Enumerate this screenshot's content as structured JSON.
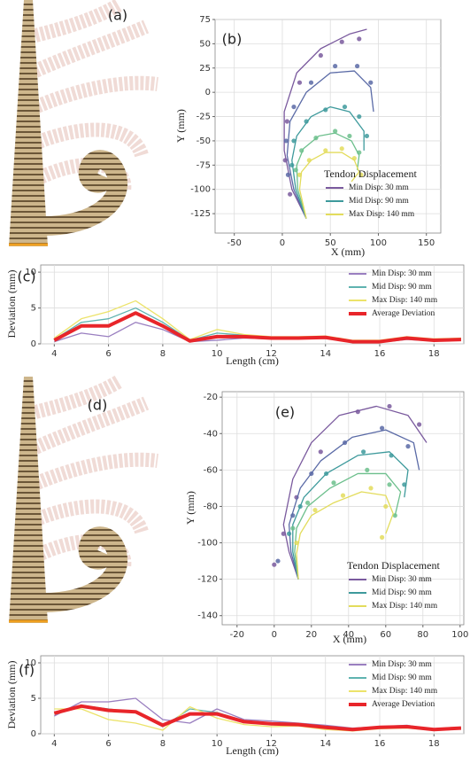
{
  "figures": [
    {
      "label": "(a)"
    },
    {
      "label": "(d)"
    }
  ],
  "chart_data": [
    {
      "type": "line",
      "panel_label": "(b)",
      "xlabel": "X (mm)",
      "ylabel": "Y (mm)",
      "xlim": [
        -70,
        165
      ],
      "ylim": [
        -145,
        75
      ],
      "xticks": [
        -50,
        0,
        50,
        100,
        150
      ],
      "yticks": [
        -125,
        -100,
        -75,
        -50,
        -25,
        0,
        25,
        50,
        75
      ],
      "grid": true,
      "legend": "lower right",
      "legend_title": "Tendon Displacement",
      "series": [
        {
          "name": "Min Disp: 30 mm",
          "color": "#7a5a9e",
          "x": [
            25,
            10,
            2,
            2,
            15,
            40,
            70,
            88
          ],
          "y": [
            -130,
            -100,
            -60,
            -20,
            20,
            45,
            60,
            65
          ],
          "points_x": [
            8,
            3,
            5,
            18,
            40,
            62,
            80
          ],
          "points_y": [
            -105,
            -70,
            -30,
            10,
            38,
            52,
            55
          ]
        },
        {
          "color": "#5a6aa6",
          "x": [
            25,
            12,
            5,
            8,
            25,
            50,
            75,
            92,
            95
          ],
          "y": [
            -130,
            -100,
            -65,
            -30,
            0,
            20,
            22,
            5,
            -20
          ],
          "points_x": [
            6,
            4,
            12,
            30,
            55,
            78,
            92
          ],
          "points_y": [
            -85,
            -50,
            -15,
            10,
            27,
            27,
            10
          ]
        },
        {
          "name": "Mid Disp: 90 mm",
          "color": "#3e9a9c",
          "x": [
            25,
            14,
            10,
            15,
            30,
            50,
            70,
            85,
            85
          ],
          "y": [
            -130,
            -100,
            -70,
            -45,
            -25,
            -15,
            -20,
            -40,
            -60
          ],
          "points_x": [
            10,
            12,
            25,
            45,
            65,
            80,
            88
          ],
          "points_y": [
            -75,
            -50,
            -30,
            -18,
            -15,
            -25,
            -45
          ]
        },
        {
          "color": "#6cbf8c",
          "x": [
            25,
            16,
            15,
            22,
            38,
            55,
            72,
            80,
            78
          ],
          "y": [
            -130,
            -100,
            -75,
            -58,
            -45,
            -42,
            -50,
            -65,
            -80
          ],
          "points_x": [
            14,
            20,
            35,
            55,
            70,
            80
          ],
          "points_y": [
            -80,
            -60,
            -47,
            -40,
            -45,
            -62
          ]
        },
        {
          "name": "Max Disp: 140 mm",
          "color": "#e3dc5c",
          "x": [
            25,
            18,
            20,
            30,
            45,
            62,
            75,
            80,
            72
          ],
          "y": [
            -130,
            -100,
            -82,
            -70,
            -62,
            -62,
            -70,
            -82,
            -92
          ],
          "points_x": [
            18,
            28,
            45,
            62,
            75,
            82
          ],
          "points_y": [
            -85,
            -70,
            -60,
            -58,
            -68,
            -85
          ]
        }
      ]
    },
    {
      "type": "line",
      "panel_label": "(c)",
      "xlabel": "Length (cm)",
      "ylabel": "Deviation (mm)",
      "xlim": [
        3.5,
        19.1
      ],
      "ylim": [
        0,
        11
      ],
      "xticks": [
        4,
        6,
        8,
        10,
        12,
        14,
        16,
        18
      ],
      "yticks": [
        0,
        5,
        10
      ],
      "grid": true,
      "legend": "upper right",
      "x": [
        4,
        5,
        6,
        7,
        8,
        9,
        10,
        11,
        12,
        13,
        14,
        15,
        16,
        17,
        18,
        19
      ],
      "series": [
        {
          "name": "Min Disp: 30 mm",
          "color": "#9a7fc0",
          "values": [
            0.3,
            1.5,
            1.0,
            3.0,
            2.0,
            0.3,
            0.5,
            0.8,
            0.7,
            0.7,
            0.8,
            0.2,
            0.2,
            0.6,
            0.4,
            0.5
          ]
        },
        {
          "name": "Mid Disp: 90 mm",
          "color": "#5fb3b0",
          "values": [
            0.6,
            3.0,
            3.5,
            5.0,
            3.0,
            0.5,
            1.5,
            1.2,
            0.9,
            0.9,
            1.0,
            0.4,
            0.4,
            0.9,
            0.6,
            0.7
          ]
        },
        {
          "name": "Max Disp: 140 mm",
          "color": "#ece36a",
          "values": [
            0.8,
            3.5,
            4.5,
            6.0,
            3.5,
            0.6,
            2.0,
            1.3,
            1.0,
            1.0,
            1.1,
            0.5,
            0.5,
            1.0,
            0.7,
            0.8
          ]
        },
        {
          "name": "Average Deviation",
          "color": "#e8252a",
          "linewidth": 4,
          "values": [
            0.5,
            2.5,
            2.5,
            4.3,
            2.5,
            0.4,
            1.0,
            1.0,
            0.8,
            0.8,
            0.9,
            0.3,
            0.3,
            0.8,
            0.5,
            0.6
          ]
        }
      ]
    },
    {
      "type": "line",
      "panel_label": "(e)",
      "xlabel": "X (mm)",
      "ylabel": "Y (mm)",
      "xlim": [
        -28,
        102
      ],
      "ylim": [
        -145,
        -17
      ],
      "xticks": [
        -20,
        0,
        20,
        40,
        60,
        80,
        100
      ],
      "yticks": [
        -140,
        -120,
        -100,
        -80,
        -60,
        -40,
        -20
      ],
      "grid": true,
      "legend": "lower right",
      "legend_title": "Tendon Displacement",
      "series": [
        {
          "name": "Min Disp: 30 mm",
          "color": "#7a5a9e",
          "x": [
            13,
            8,
            5,
            10,
            20,
            35,
            55,
            72,
            82
          ],
          "y": [
            -120,
            -105,
            -90,
            -65,
            -45,
            -30,
            -25,
            -30,
            -45
          ],
          "points_x": [
            0,
            5,
            12,
            25,
            45,
            62,
            78
          ],
          "points_y": [
            -112,
            -95,
            -75,
            -50,
            -28,
            -25,
            -35
          ]
        },
        {
          "color": "#5a6aa6",
          "x": [
            13,
            9,
            8,
            14,
            25,
            42,
            60,
            75,
            78
          ],
          "y": [
            -120,
            -105,
            -90,
            -70,
            -55,
            -42,
            -38,
            -45,
            -60
          ],
          "points_x": [
            2,
            10,
            20,
            38,
            58,
            72
          ],
          "points_y": [
            -110,
            -85,
            -62,
            -45,
            -37,
            -47
          ]
        },
        {
          "name": "Mid Disp: 90 mm",
          "color": "#3e9a9c",
          "x": [
            13,
            10,
            10,
            16,
            28,
            45,
            62,
            72,
            70
          ],
          "y": [
            -120,
            -105,
            -90,
            -75,
            -62,
            -52,
            -50,
            -60,
            -75
          ],
          "points_x": [
            8,
            14,
            28,
            48,
            63,
            70
          ],
          "points_y": [
            -95,
            -80,
            -62,
            -50,
            -52,
            -68
          ]
        },
        {
          "color": "#6cbf8c",
          "x": [
            13,
            11,
            12,
            18,
            30,
            45,
            60,
            68,
            65
          ],
          "y": [
            -120,
            -105,
            -92,
            -80,
            -70,
            -62,
            -62,
            -72,
            -85
          ],
          "points_x": [
            10,
            18,
            32,
            50,
            62,
            65
          ],
          "points_y": [
            -92,
            -78,
            -67,
            -60,
            -68,
            -85
          ]
        },
        {
          "name": "Max Disp: 140 mm",
          "color": "#e3dc5c",
          "x": [
            13,
            12,
            14,
            20,
            32,
            47,
            60,
            64,
            60
          ],
          "y": [
            -120,
            -106,
            -95,
            -85,
            -78,
            -72,
            -74,
            -84,
            -95
          ],
          "points_x": [
            12,
            22,
            37,
            52,
            60,
            58
          ],
          "points_y": [
            -100,
            -82,
            -74,
            -70,
            -80,
            -97
          ]
        }
      ]
    },
    {
      "type": "line",
      "panel_label": "(f)",
      "xlabel": "Length (cm)",
      "ylabel": "Deviation (mm)",
      "xlim": [
        3.5,
        19.1
      ],
      "ylim": [
        0,
        11
      ],
      "xticks": [
        4,
        6,
        8,
        10,
        12,
        14,
        16,
        18
      ],
      "yticks": [
        0,
        5,
        10
      ],
      "grid": true,
      "legend": "upper right",
      "x": [
        4,
        5,
        6,
        7,
        8,
        9,
        10,
        11,
        12,
        13,
        14,
        15,
        16,
        17,
        18,
        19
      ],
      "series": [
        {
          "name": "Min Disp: 30 mm",
          "color": "#9a7fc0",
          "values": [
            2.5,
            4.5,
            4.5,
            5.0,
            2.0,
            1.5,
            3.5,
            2.0,
            1.8,
            1.5,
            1.2,
            0.8,
            1.0,
            1.2,
            0.6,
            0.7
          ]
        },
        {
          "name": "Mid Disp: 90 mm",
          "color": "#5fb3b0",
          "values": [
            3.0,
            4.0,
            3.5,
            3.0,
            1.0,
            3.5,
            3.0,
            1.8,
            1.5,
            1.3,
            1.0,
            0.6,
            0.9,
            1.0,
            0.7,
            0.9
          ]
        },
        {
          "name": "Max Disp: 140 mm",
          "color": "#ece36a",
          "values": [
            3.5,
            3.5,
            2.0,
            1.5,
            0.5,
            3.8,
            2.2,
            1.3,
            1.0,
            1.1,
            0.6,
            0.4,
            0.7,
            0.8,
            0.5,
            0.8
          ]
        },
        {
          "name": "Average Deviation",
          "color": "#e8252a",
          "linewidth": 4,
          "values": [
            2.9,
            3.9,
            3.3,
            3.1,
            1.2,
            2.8,
            2.8,
            1.7,
            1.4,
            1.3,
            0.9,
            0.6,
            0.9,
            1.0,
            0.6,
            0.8
          ]
        }
      ]
    }
  ]
}
